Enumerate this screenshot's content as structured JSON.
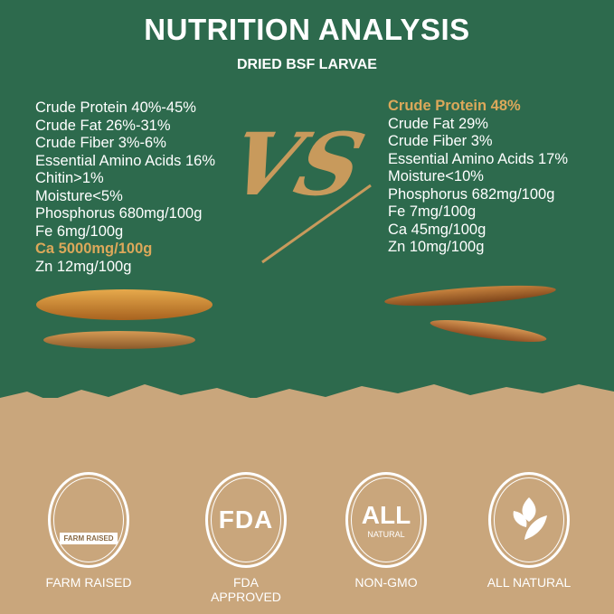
{
  "header": {
    "title": "NUTRITION ANALYSIS",
    "subtitle": "DRIED BSF LARVAE"
  },
  "versus_mark": "VS",
  "left": {
    "items": [
      {
        "text": "Crude Protein 40%-45%",
        "highlight": false
      },
      {
        "text": "Crude Fat 26%-31%",
        "highlight": false
      },
      {
        "text": "Crude Fiber 3%-6%",
        "highlight": false
      },
      {
        "text": "Essential Amino Acids 16%",
        "highlight": false
      },
      {
        "text": "Chitin>1%",
        "highlight": false
      },
      {
        "text": "Moisture<5%",
        "highlight": false
      },
      {
        "text": "Phosphorus 680mg/100g",
        "highlight": false
      },
      {
        "text": "Fe 6mg/100g",
        "highlight": false
      },
      {
        "text": "Ca 5000mg/100g",
        "highlight": true
      },
      {
        "text": "Zn 12mg/100g",
        "highlight": false
      }
    ]
  },
  "right": {
    "items": [
      {
        "text": "Crude Protein 48%",
        "highlight": true
      },
      {
        "text": "Crude Fat 29%",
        "highlight": false
      },
      {
        "text": "Crude Fiber 3%",
        "highlight": false
      },
      {
        "text": "Essential Amino Acids 17%",
        "highlight": false
      },
      {
        "text": "Moisture<10%",
        "highlight": false
      },
      {
        "text": "Phosphorus 682mg/100g",
        "highlight": false
      },
      {
        "text": "Fe 7mg/100g",
        "highlight": false
      },
      {
        "text": "Ca 45mg/100g",
        "highlight": false
      },
      {
        "text": "Zn 10mg/100g",
        "highlight": false
      }
    ]
  },
  "badges": [
    {
      "icon": "farm-icon",
      "emblem": "FARM RAISED",
      "label": "FARM RAISED"
    },
    {
      "icon": "fda-icon",
      "emblem": "FDA",
      "label": "FDA APPROVED"
    },
    {
      "icon": "all-natural-icon",
      "emblem": "ALL",
      "emblem_sub": "NATURAL",
      "label": "NON-GMO"
    },
    {
      "icon": "leaf-icon",
      "label": "ALL NATURAL"
    }
  ],
  "colors": {
    "green": "#2d6a4d",
    "kraft": "#c9a67c",
    "gold": "#dca85a"
  }
}
